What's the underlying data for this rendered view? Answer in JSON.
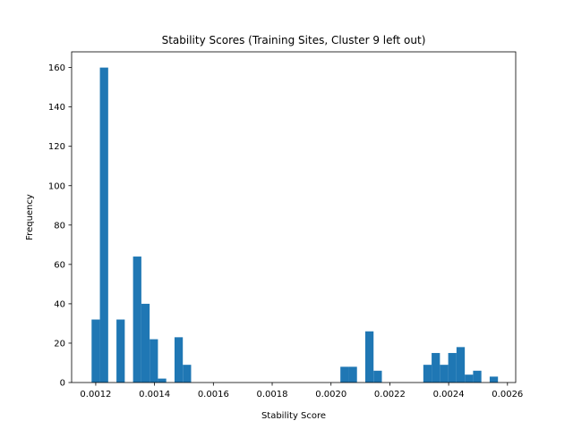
{
  "chart_data": {
    "type": "bar",
    "subtype": "histogram",
    "title": "Stability Scores (Training Sites, Cluster 9 left out)",
    "xlabel": "Stability Score",
    "ylabel": "Frequency",
    "xlim": [
      0.001118,
      0.002628
    ],
    "ylim": [
      0,
      168
    ],
    "bar_color": "#1f77b4",
    "bin_width": 2.82e-05,
    "x_ticks": [
      0.0012,
      0.0014,
      0.0016,
      0.0018,
      0.002,
      0.0022,
      0.0024,
      0.0026
    ],
    "x_tick_labels": [
      "0.0012",
      "0.0014",
      "0.0016",
      "0.0018",
      "0.0020",
      "0.0022",
      "0.0024",
      "0.0026"
    ],
    "y_ticks": [
      0,
      20,
      40,
      60,
      80,
      100,
      120,
      140,
      160
    ],
    "y_tick_labels": [
      "0",
      "20",
      "40",
      "60",
      "80",
      "100",
      "120",
      "140",
      "160"
    ],
    "bins": [
      {
        "x": 0.0011859,
        "count": 32
      },
      {
        "x": 0.0012141,
        "count": 160
      },
      {
        "x": 0.0012705,
        "count": 32
      },
      {
        "x": 0.0013269,
        "count": 64
      },
      {
        "x": 0.0013551,
        "count": 40
      },
      {
        "x": 0.0013833,
        "count": 22
      },
      {
        "x": 0.0014115,
        "count": 2
      },
      {
        "x": 0.0014679,
        "count": 23
      },
      {
        "x": 0.0014961,
        "count": 9
      },
      {
        "x": 0.0020319,
        "count": 8
      },
      {
        "x": 0.0020601,
        "count": 8
      },
      {
        "x": 0.0021165,
        "count": 26
      },
      {
        "x": 0.0021447,
        "count": 6
      },
      {
        "x": 0.0023139,
        "count": 9
      },
      {
        "x": 0.0023421,
        "count": 15
      },
      {
        "x": 0.0023703,
        "count": 9
      },
      {
        "x": 0.0023985,
        "count": 15
      },
      {
        "x": 0.0024267,
        "count": 18
      },
      {
        "x": 0.0024549,
        "count": 4
      },
      {
        "x": 0.0024831,
        "count": 6
      },
      {
        "x": 0.0025395,
        "count": 3
      }
    ]
  }
}
